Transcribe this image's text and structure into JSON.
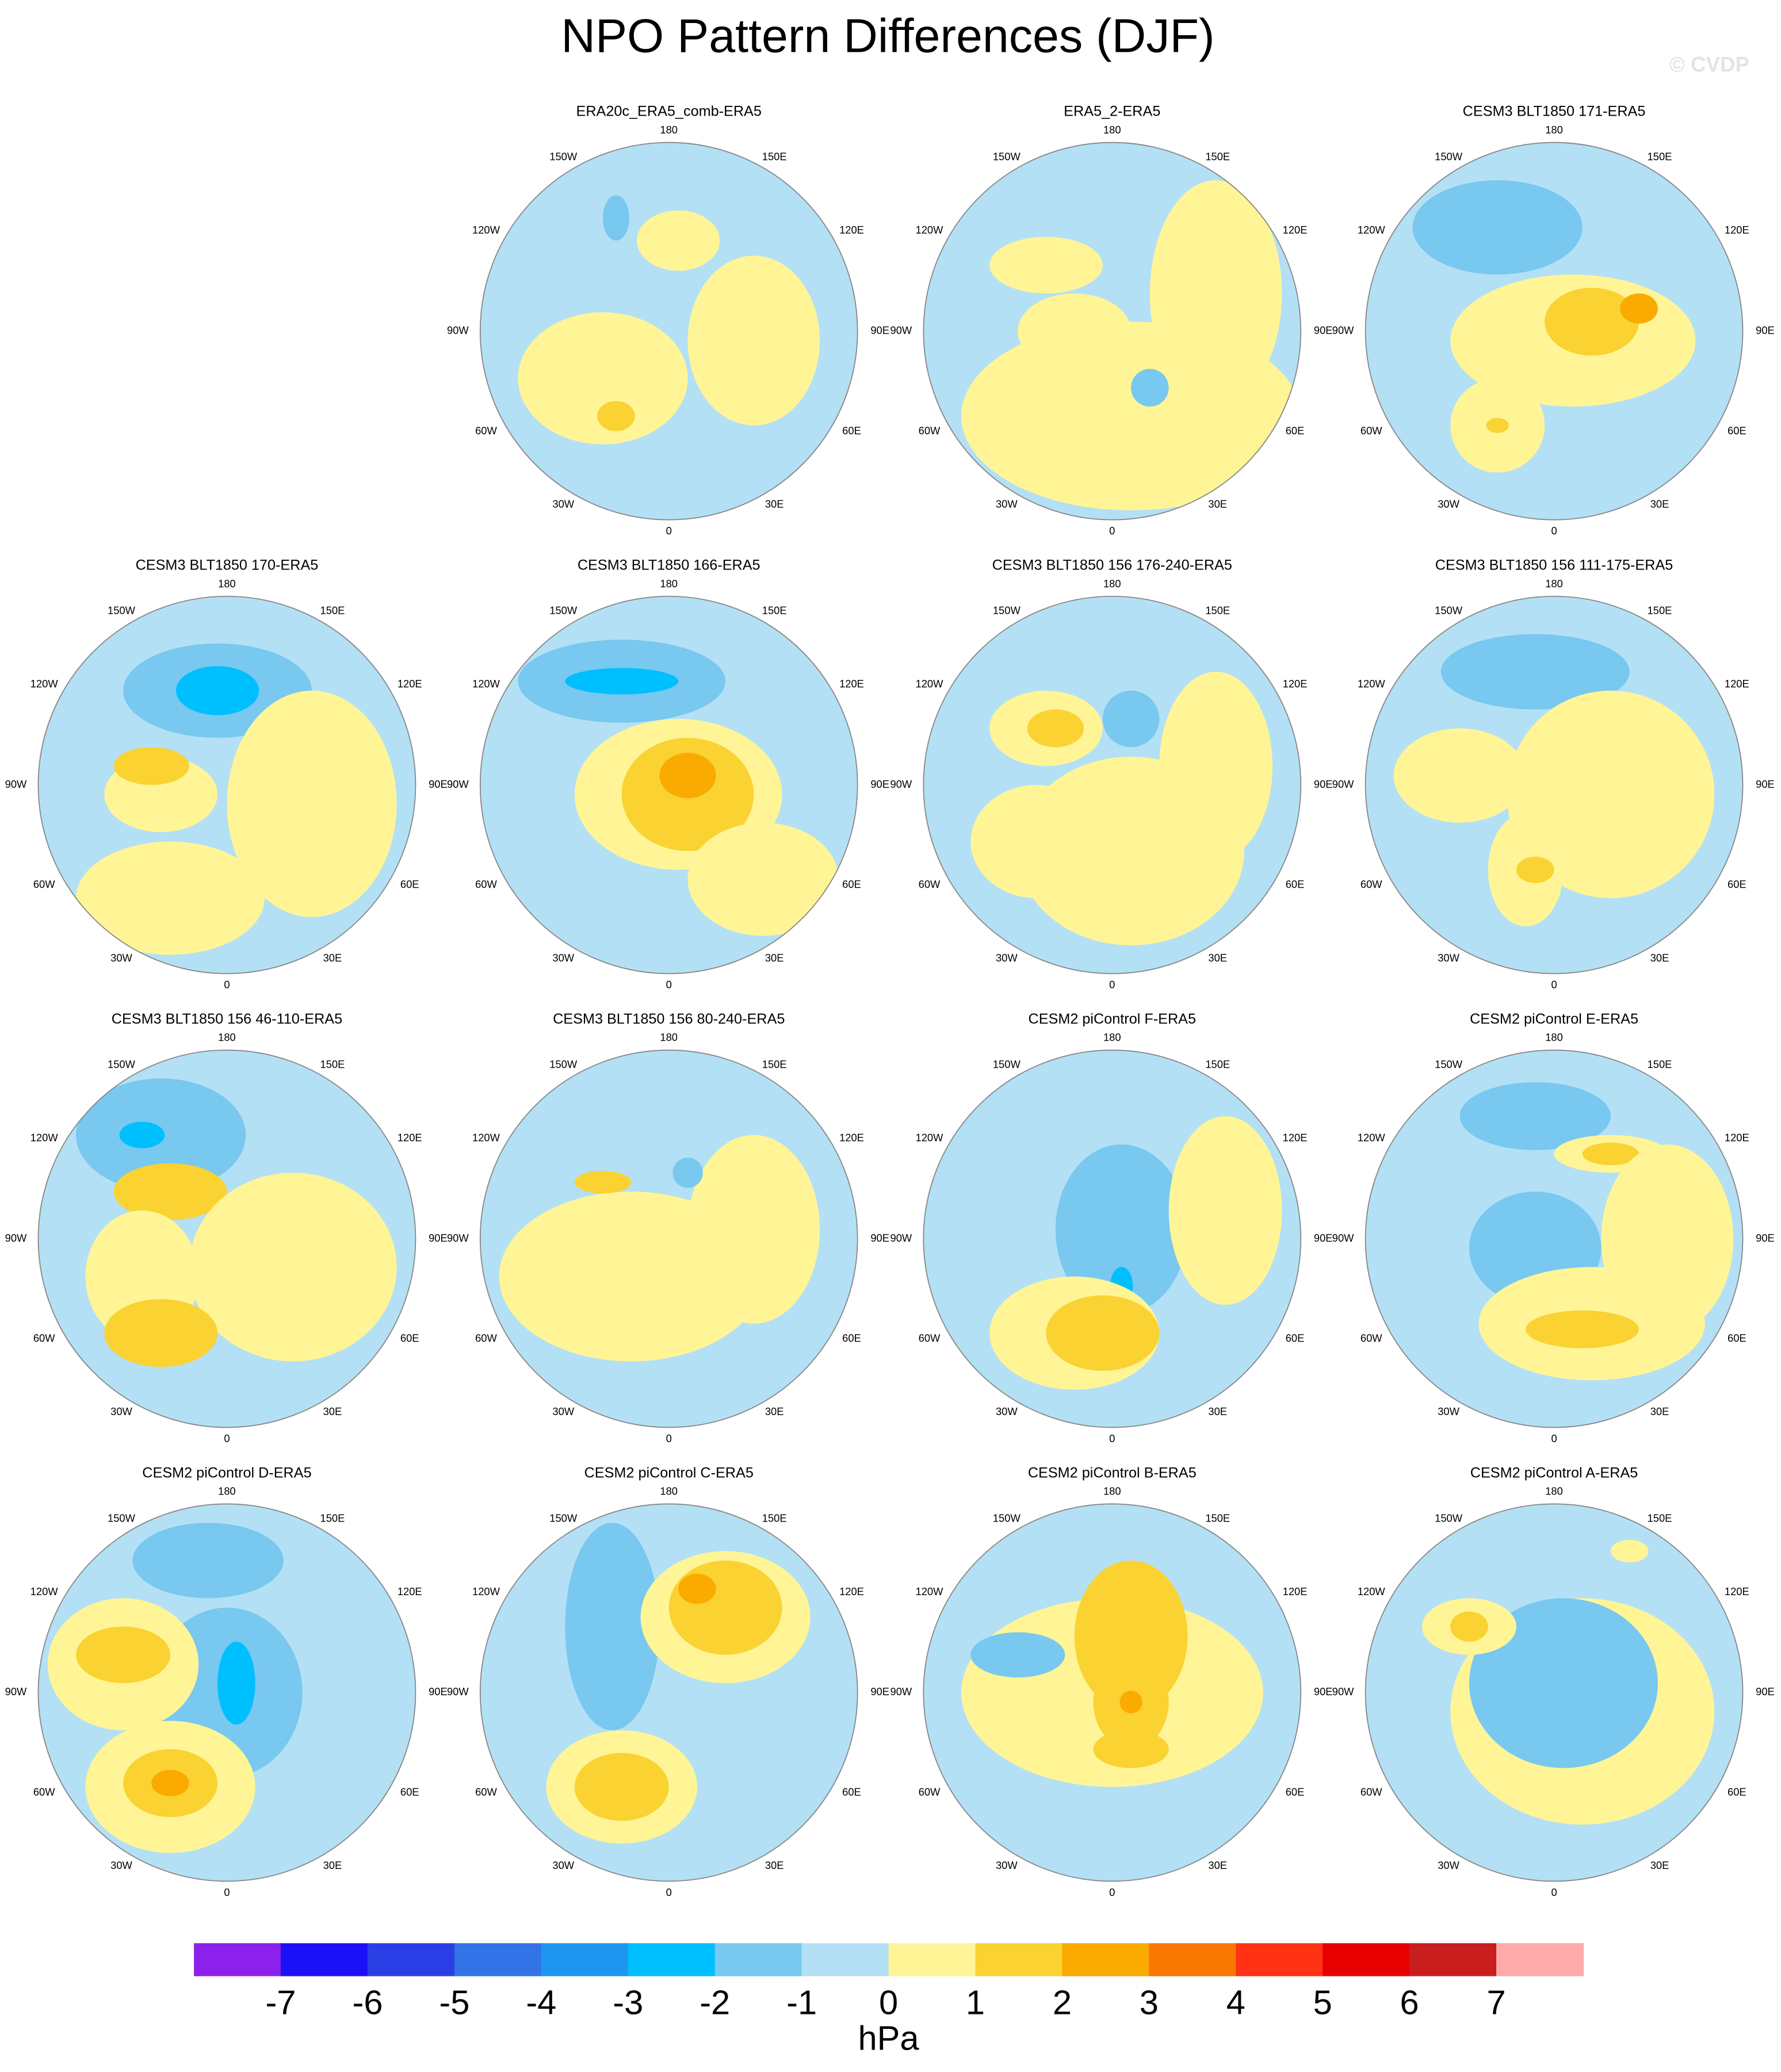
{
  "title": "NPO Pattern Differences (DJF)",
  "watermark": "© CVDP",
  "longitude_labels": [
    "180",
    "150E",
    "120E",
    "90E",
    "60E",
    "30E",
    "0",
    "30W",
    "60W",
    "90W",
    "120W",
    "150W"
  ],
  "panels": [
    {
      "title": "ERA20c_ERA5_comb-ERA5"
    },
    {
      "title": "ERA5_2-ERA5"
    },
    {
      "title": "CESM3 BLT1850 171-ERA5"
    },
    {
      "title": "CESM3 BLT1850 170-ERA5"
    },
    {
      "title": "CESM3 BLT1850 166-ERA5"
    },
    {
      "title": "CESM3 BLT1850 156 176-240-ERA5"
    },
    {
      "title": "CESM3 BLT1850 156 111-175-ERA5"
    },
    {
      "title": "CESM3 BLT1850 156 46-110-ERA5"
    },
    {
      "title": "CESM3 BLT1850 156 80-240-ERA5"
    },
    {
      "title": "CESM2 piControl F-ERA5"
    },
    {
      "title": "CESM2 piControl E-ERA5"
    },
    {
      "title": "CESM2 piControl D-ERA5"
    },
    {
      "title": "CESM2 piControl C-ERA5"
    },
    {
      "title": "CESM2 piControl B-ERA5"
    },
    {
      "title": "CESM2 piControl A-ERA5"
    }
  ],
  "colorbar": {
    "colors": [
      "#8b21ea",
      "#1c10f9",
      "#2b3ee6",
      "#3273e8",
      "#1e96f0",
      "#00bfff",
      "#78c8f0",
      "#b4e0f5",
      "#fff597",
      "#fad232",
      "#fbaa00",
      "#f97800",
      "#ff3214",
      "#e60000",
      "#c81e1e",
      "#ffaaaa"
    ],
    "ticks": [
      -7,
      -6,
      -5,
      -4,
      -3,
      -2,
      -1,
      0,
      1,
      2,
      3,
      4,
      5,
      6,
      7
    ],
    "label": "hPa"
  }
}
